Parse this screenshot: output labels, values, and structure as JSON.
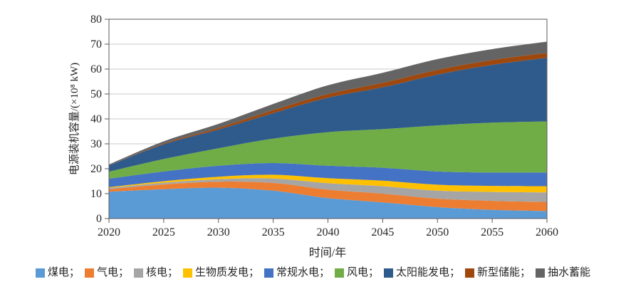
{
  "figure": {
    "background": "#FFFFFF"
  },
  "style": {
    "grid_color": "#C9C9C9",
    "axis_color": "#595959",
    "text_color": "#262626"
  },
  "chart_data": {
    "type": "area",
    "stacked": true,
    "title": "",
    "xlabel": "时间/年",
    "ylabel": "电源装机容量/(×10⁸ kW)",
    "x": [
      2020,
      2025,
      2030,
      2035,
      2040,
      2045,
      2050,
      2055,
      2060
    ],
    "ylim": [
      0,
      80
    ],
    "ytick_step": 10,
    "grid": "horizontal",
    "legend_position": "bottom",
    "legend_separator": "；",
    "series": [
      {
        "name": "煤电",
        "name_en": "coal-power",
        "color": "#5B9BD5",
        "values": [
          10.8,
          11.8,
          12.4,
          11.2,
          8.2,
          6.5,
          4.6,
          3.5,
          3.0
        ]
      },
      {
        "name": "气电",
        "name_en": "gas-power",
        "color": "#ED7D31",
        "values": [
          1.0,
          1.9,
          2.4,
          3.1,
          3.4,
          3.5,
          3.4,
          3.6,
          3.7
        ]
      },
      {
        "name": "核电",
        "name_en": "nuclear-power",
        "color": "#A5A5A5",
        "values": [
          0.5,
          0.7,
          1.0,
          1.8,
          2.6,
          3.0,
          3.2,
          3.6,
          3.8
        ]
      },
      {
        "name": "生物质发电",
        "name_en": "biomass-power",
        "color": "#FFC000",
        "values": [
          0.3,
          0.6,
          1.0,
          1.5,
          2.0,
          2.2,
          2.4,
          2.4,
          2.5
        ]
      },
      {
        "name": "常规水电",
        "name_en": "conventional-hydro",
        "color": "#4472C4",
        "values": [
          3.4,
          3.9,
          4.4,
          4.7,
          5.0,
          5.2,
          5.3,
          5.4,
          5.5
        ]
      },
      {
        "name": "风电",
        "name_en": "wind-power",
        "color": "#70AD47",
        "values": [
          2.8,
          5.0,
          7.0,
          9.8,
          13.5,
          15.5,
          18.5,
          20.0,
          20.5
        ]
      },
      {
        "name": "太阳能发电",
        "name_en": "solar-power",
        "color": "#2F5B8C",
        "values": [
          2.5,
          5.9,
          7.5,
          10.2,
          13.8,
          16.8,
          20.4,
          23.2,
          25.5
        ]
      },
      {
        "name": "新型储能",
        "name_en": "new-energy-storage",
        "color": "#9E480E",
        "values": [
          0.05,
          0.3,
          0.7,
          1.2,
          1.5,
          1.8,
          1.9,
          1.9,
          2.0
        ]
      },
      {
        "name": "抽水蓄能",
        "name_en": "pumped-storage",
        "color": "#646464",
        "values": [
          0.35,
          0.9,
          1.6,
          2.5,
          3.5,
          4.0,
          4.3,
          4.4,
          4.5
        ]
      }
    ]
  }
}
